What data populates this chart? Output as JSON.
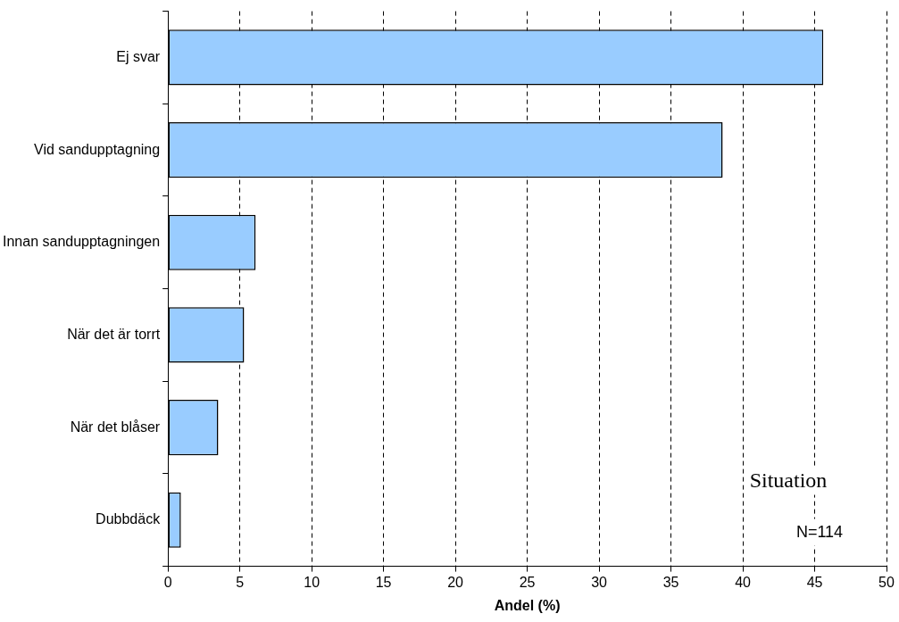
{
  "chart_data": {
    "type": "bar",
    "orientation": "horizontal",
    "xlabel": "Andel (%)",
    "categories": [
      "Ej svar",
      "Vid sandupptagning",
      "Innan sandupptagningen",
      "När det är torrt",
      "När det blåser",
      "Dubbdäck"
    ],
    "values": [
      45.6,
      38.6,
      6.1,
      5.3,
      3.5,
      0.9
    ],
    "color": "#99ccff",
    "xlim": [
      0,
      50
    ],
    "xticks": [
      0,
      5,
      10,
      15,
      20,
      25,
      30,
      35,
      40,
      45,
      50
    ],
    "grid": "x",
    "legend": false,
    "annotations": [
      "Situation",
      "N=114"
    ]
  }
}
